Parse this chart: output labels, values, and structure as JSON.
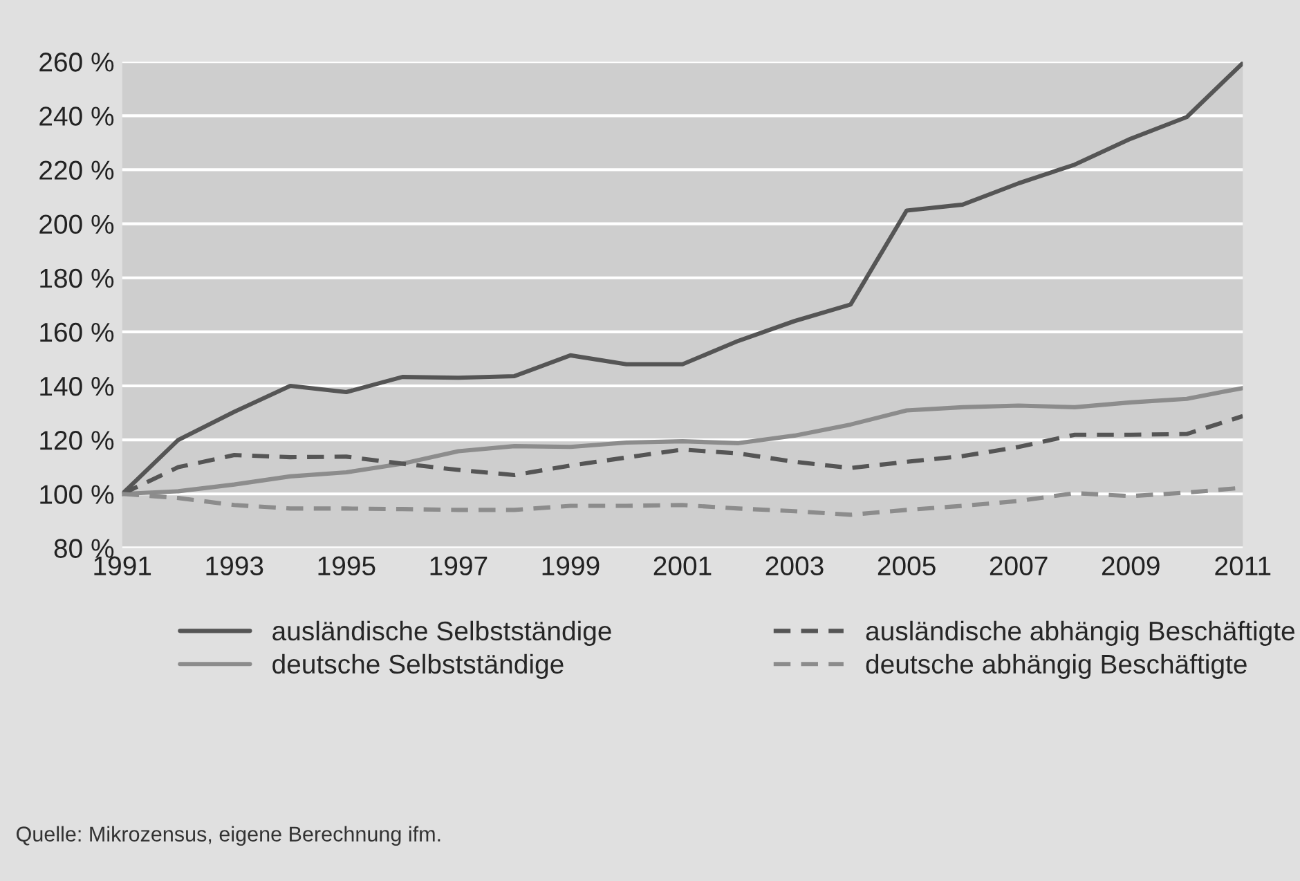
{
  "chart_data": {
    "type": "line",
    "x": [
      1991,
      1992,
      1993,
      1994,
      1995,
      1996,
      1997,
      1998,
      1999,
      2000,
      2001,
      2002,
      2003,
      2004,
      2005,
      2006,
      2007,
      2008,
      2009,
      2010,
      2011
    ],
    "series": [
      {
        "name": "ausländische Selbstständige",
        "color": "#555555",
        "line_style": "solid",
        "values": [
          100,
          120,
          130.4,
          140,
          137.7,
          143.3,
          143,
          143.6,
          151.3,
          148,
          148,
          156.7,
          164,
          170.1,
          204.9,
          207.1,
          215,
          221.9,
          231.5,
          239.5,
          259.5
        ]
      },
      {
        "name": "deutsche Selbstständige",
        "color": "#8c8c8c",
        "line_style": "solid",
        "values": [
          100,
          101,
          103.5,
          106.5,
          108,
          111.2,
          115.8,
          117.7,
          117.4,
          119,
          119.5,
          118.8,
          121.6,
          125.7,
          130.9,
          132.1,
          132.7,
          132.1,
          133.9,
          135.2,
          139.2
        ]
      },
      {
        "name": "ausländische abhängig Beschäftigte",
        "color": "#555555",
        "line_style": "dashed",
        "values": [
          100,
          109.9,
          114.4,
          113.6,
          113.8,
          111.2,
          108.9,
          107,
          110.5,
          113.5,
          116.4,
          115,
          111.9,
          109.6,
          111.9,
          114,
          117.4,
          121.9,
          121.9,
          122.2,
          128.8
        ]
      },
      {
        "name": "deutsche abhängig Beschäftigte",
        "color": "#8c8c8c",
        "line_style": "dashed",
        "values": [
          100,
          98.5,
          95.9,
          94.6,
          94.6,
          94.4,
          94.1,
          94.1,
          95.6,
          95.6,
          95.9,
          94.6,
          93.6,
          92.3,
          94.1,
          95.6,
          97.4,
          100.3,
          99.2,
          100.5,
          102.3
        ]
      }
    ],
    "xlim": [
      1991,
      2011
    ],
    "xticks": [
      1991,
      1993,
      1995,
      1997,
      1999,
      2001,
      2003,
      2005,
      2007,
      2009,
      2011
    ],
    "ylim": [
      80,
      260
    ],
    "yticks": [
      {
        "value": 80,
        "label": "80 %"
      },
      {
        "value": 100,
        "label": "100 %"
      },
      {
        "value": 120,
        "label": "120 %"
      },
      {
        "value": 140,
        "label": "140 %"
      },
      {
        "value": 160,
        "label": "160 %"
      },
      {
        "value": 180,
        "label": "180 %"
      },
      {
        "value": 200,
        "label": "200 %"
      },
      {
        "value": 220,
        "label": "220 %"
      },
      {
        "value": 240,
        "label": "240 %"
      },
      {
        "value": 260,
        "label": "260 %"
      }
    ],
    "grid": "y",
    "legend": "bottom",
    "marker": "none",
    "annotations": [
      "Quelle: Mikrozensus, eigene Berechnung ifm."
    ]
  }
}
